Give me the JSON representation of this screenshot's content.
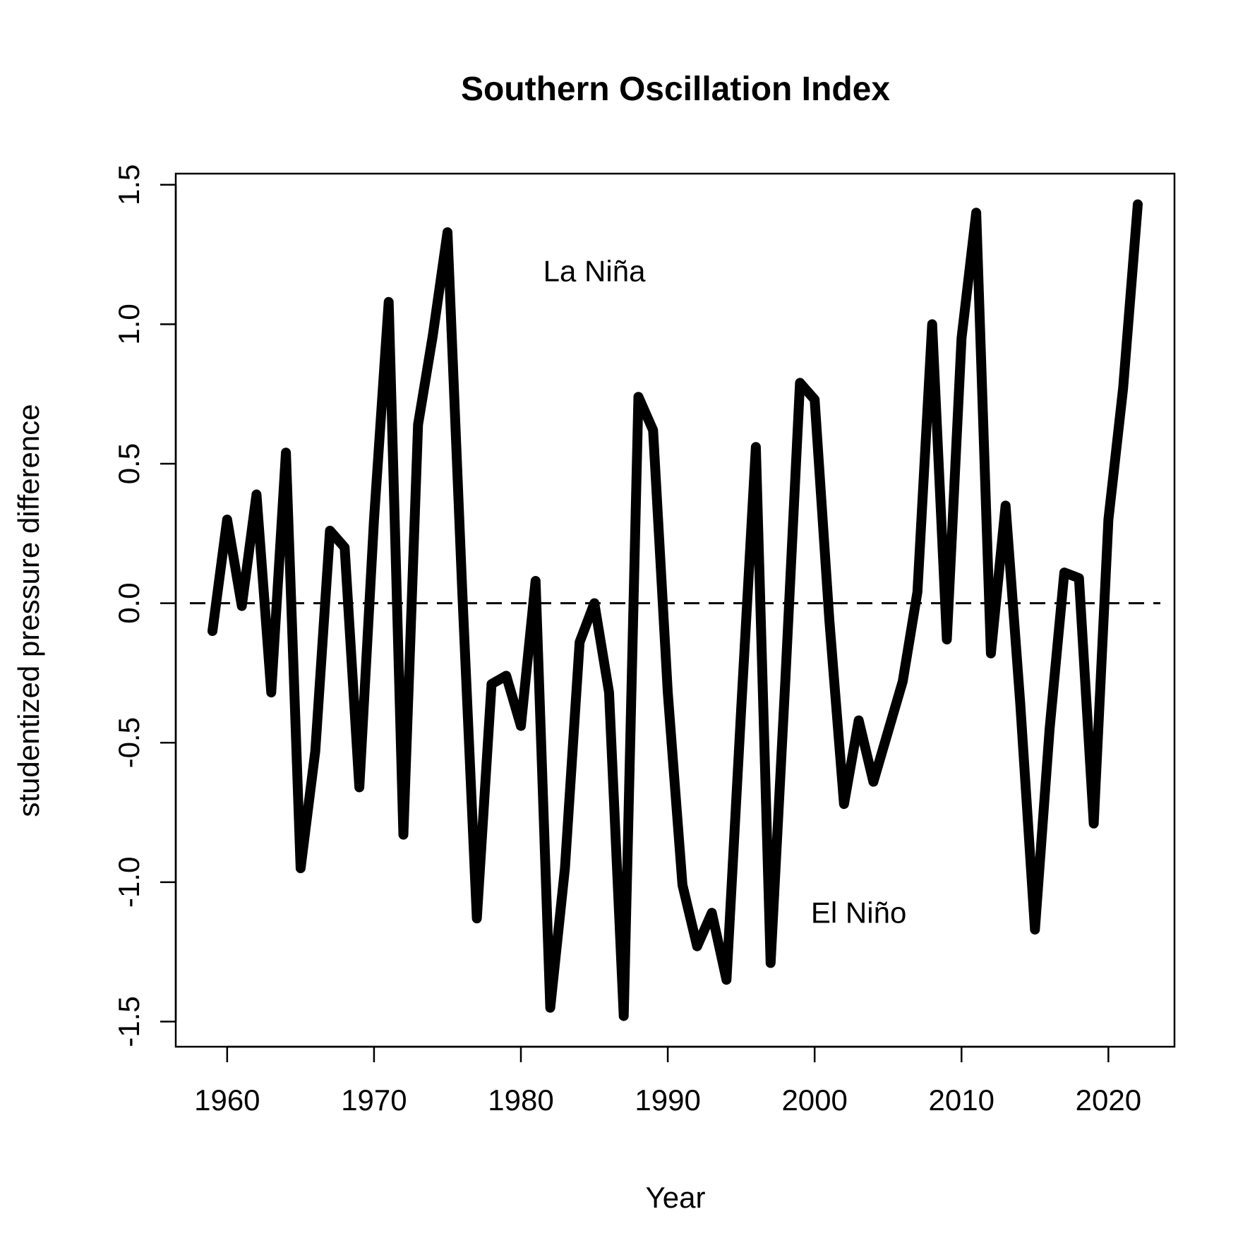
{
  "chart_data": {
    "type": "line",
    "title": "Southern Oscillation Index",
    "xlabel": "Year",
    "ylabel": "studentized pressure difference",
    "xlim": [
      1956.5,
      2024.5
    ],
    "ylim": [
      -1.59,
      1.54
    ],
    "x_ticks": [
      "1960",
      "1970",
      "1980",
      "1990",
      "2000",
      "2010",
      "2020"
    ],
    "y_ticks": [
      "-1.5",
      "-1.0",
      "-0.5",
      "0.0",
      "0.5",
      "1.0",
      "1.5"
    ],
    "reference_line": {
      "y": 0,
      "style": "dashed"
    },
    "annotations": [
      {
        "text": "La Niña",
        "x": 1985,
        "y": 1.19
      },
      {
        "text": "El Niño",
        "x": 2003,
        "y": -1.11
      }
    ],
    "grid": false,
    "series": [
      {
        "color": "#000000",
        "x": [
          1959,
          1960,
          1961,
          1962,
          1963,
          1964,
          1965,
          1966,
          1967,
          1968,
          1969,
          1970,
          1971,
          1972,
          1973,
          1974,
          1975,
          1976,
          1977,
          1978,
          1979,
          1980,
          1981,
          1982,
          1983,
          1984,
          1985,
          1986,
          1987,
          1988,
          1989,
          1990,
          1991,
          1992,
          1993,
          1994,
          1995,
          1996,
          1997,
          1998,
          1999,
          2000,
          2001,
          2002,
          2003,
          2004,
          2005,
          2006,
          2007,
          2008,
          2009,
          2010,
          2011,
          2012,
          2013,
          2014,
          2015,
          2016,
          2017,
          2018,
          2019,
          2020,
          2021,
          2022
        ],
        "y": [
          -0.1,
          0.3,
          -0.01,
          0.39,
          -0.32,
          0.54,
          -0.95,
          -0.53,
          0.26,
          0.2,
          -0.66,
          0.3,
          1.08,
          -0.83,
          0.64,
          0.96,
          1.33,
          0.05,
          -1.13,
          -0.29,
          -0.26,
          -0.44,
          0.08,
          -1.45,
          -0.95,
          -0.14,
          0.0,
          -0.32,
          -1.48,
          0.74,
          0.62,
          -0.32,
          -1.01,
          -1.23,
          -1.11,
          -1.35,
          -0.38,
          0.56,
          -1.29,
          -0.28,
          0.79,
          0.73,
          -0.06,
          -0.72,
          -0.42,
          -0.64,
          -0.46,
          -0.28,
          0.04,
          1.0,
          -0.13,
          0.95,
          1.4,
          -0.18,
          0.35,
          -0.36,
          -1.17,
          -0.45,
          0.11,
          0.09,
          -0.79,
          0.3,
          0.77,
          1.43
        ]
      }
    ]
  }
}
